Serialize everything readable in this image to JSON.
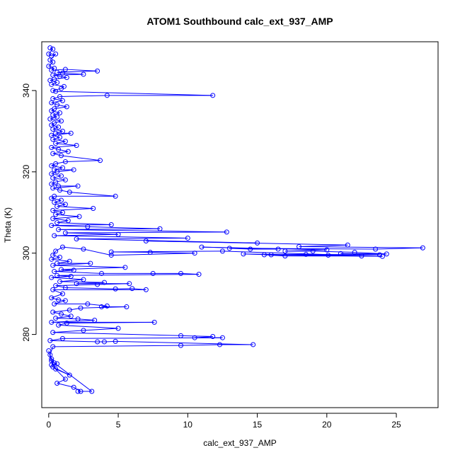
{
  "chart_data": {
    "type": "scatter",
    "title": "ATOM1 Southbound calc_ext_937_AMP",
    "xlabel": "calc_ext_937_AMP",
    "ylabel": "Theta (K)",
    "xlim": [
      -0.5,
      28
    ],
    "ylim": [
      262,
      352
    ],
    "xticks": [
      0,
      5,
      10,
      15,
      20,
      25
    ],
    "yticks": [
      280,
      300,
      320,
      340
    ],
    "grid": false,
    "legend": "none",
    "marker": "open-circle",
    "connect_points": true,
    "color": "#0000ff",
    "series": [
      {
        "points": [
          [
            0.1,
            350.5
          ],
          [
            0.3,
            350.2
          ],
          [
            0.0,
            349.0
          ],
          [
            0.2,
            348.5
          ],
          [
            0.5,
            349.0
          ],
          [
            0.1,
            347.5
          ],
          [
            0.3,
            347.0
          ],
          [
            0.0,
            346.0
          ],
          [
            0.4,
            345.5
          ],
          [
            0.2,
            345.0
          ],
          [
            1.2,
            345.2
          ],
          [
            3.5,
            344.8
          ],
          [
            0.6,
            344.5
          ],
          [
            1.0,
            344.3
          ],
          [
            2.5,
            344.0
          ],
          [
            0.3,
            343.8
          ],
          [
            0.8,
            343.5
          ],
          [
            1.3,
            343.2
          ],
          [
            0.4,
            342.8
          ],
          [
            0.1,
            342.5
          ],
          [
            0.6,
            342.0
          ],
          [
            0.2,
            341.5
          ],
          [
            1.1,
            341.0
          ],
          [
            0.9,
            340.5
          ],
          [
            0.3,
            340.0
          ],
          [
            0.5,
            339.8
          ],
          [
            11.8,
            338.8
          ],
          [
            4.2,
            338.8
          ],
          [
            0.8,
            338.5
          ],
          [
            0.3,
            338.0
          ],
          [
            1.0,
            337.5
          ],
          [
            0.2,
            337.0
          ],
          [
            0.6,
            336.5
          ],
          [
            1.3,
            336.0
          ],
          [
            0.4,
            335.5
          ],
          [
            0.2,
            335.0
          ],
          [
            0.8,
            334.5
          ],
          [
            0.3,
            334.0
          ],
          [
            0.6,
            333.5
          ],
          [
            0.1,
            333.0
          ],
          [
            0.9,
            332.5
          ],
          [
            0.4,
            332.0
          ],
          [
            0.2,
            331.5
          ],
          [
            0.7,
            331.0
          ],
          [
            0.3,
            330.5
          ],
          [
            1.0,
            330.0
          ],
          [
            0.5,
            329.5
          ],
          [
            1.6,
            329.5
          ],
          [
            0.2,
            329.0
          ],
          [
            0.8,
            328.5
          ],
          [
            0.3,
            328.0
          ],
          [
            1.2,
            327.5
          ],
          [
            0.5,
            327.0
          ],
          [
            2.0,
            326.5
          ],
          [
            0.2,
            326.0
          ],
          [
            0.7,
            325.5
          ],
          [
            1.4,
            325.0
          ],
          [
            0.3,
            324.5
          ],
          [
            0.9,
            324.0
          ],
          [
            3.7,
            322.8
          ],
          [
            1.2,
            322.5
          ],
          [
            0.5,
            322.0
          ],
          [
            0.2,
            321.5
          ],
          [
            1.0,
            321.0
          ],
          [
            0.4,
            320.5
          ],
          [
            1.8,
            320.5
          ],
          [
            0.6,
            320.0
          ],
          [
            0.2,
            319.5
          ],
          [
            0.9,
            319.0
          ],
          [
            0.3,
            318.5
          ],
          [
            1.2,
            318.0
          ],
          [
            0.5,
            317.5
          ],
          [
            0.2,
            317.0
          ],
          [
            0.7,
            316.5
          ],
          [
            2.1,
            316.5
          ],
          [
            0.3,
            316.0
          ],
          [
            0.8,
            315.5
          ],
          [
            1.5,
            315.0
          ],
          [
            4.8,
            314.0
          ],
          [
            0.4,
            314.0
          ],
          [
            0.2,
            313.5
          ],
          [
            0.9,
            313.0
          ],
          [
            0.4,
            312.5
          ],
          [
            1.2,
            312.0
          ],
          [
            0.6,
            311.5
          ],
          [
            3.2,
            311.0
          ],
          [
            0.3,
            310.5
          ],
          [
            1.0,
            310.0
          ],
          [
            0.5,
            309.5
          ],
          [
            2.2,
            309.0
          ],
          [
            0.3,
            308.5
          ],
          [
            1.4,
            308.0
          ],
          [
            0.6,
            307.5
          ],
          [
            4.5,
            307.0
          ],
          [
            0.2,
            306.8
          ],
          [
            2.8,
            306.5
          ],
          [
            8.0,
            306.0
          ],
          [
            0.7,
            305.8
          ],
          [
            12.8,
            305.2
          ],
          [
            1.2,
            305.0
          ],
          [
            5.0,
            304.6
          ],
          [
            0.4,
            304.3
          ],
          [
            10.0,
            303.7
          ],
          [
            2.0,
            303.5
          ],
          [
            15.0,
            302.5
          ],
          [
            7.0,
            303.0
          ],
          [
            21.5,
            302.0
          ],
          [
            18.0,
            301.6
          ],
          [
            26.9,
            301.3
          ],
          [
            23.5,
            301.0
          ],
          [
            13.0,
            301.2
          ],
          [
            14.5,
            301.0
          ],
          [
            16.5,
            301.0
          ],
          [
            11.0,
            301.5
          ],
          [
            20.0,
            300.8
          ],
          [
            17.0,
            300.5
          ],
          [
            19.0,
            300.5
          ],
          [
            22.0,
            300.2
          ],
          [
            24.3,
            299.8
          ],
          [
            21.0,
            299.9
          ],
          [
            23.8,
            299.6
          ],
          [
            18.5,
            299.7
          ],
          [
            16.0,
            299.6
          ],
          [
            14.0,
            299.8
          ],
          [
            20.1,
            299.5
          ],
          [
            22.5,
            299.3
          ],
          [
            17.0,
            299.3
          ],
          [
            15.5,
            299.6
          ],
          [
            24.0,
            299.2
          ],
          [
            12.5,
            300.5
          ],
          [
            4.5,
            300.3
          ],
          [
            7.3,
            300.2
          ],
          [
            10.5,
            300.0
          ],
          [
            4.5,
            299.5
          ],
          [
            2.5,
            301.0
          ],
          [
            1.0,
            301.5
          ],
          [
            0.5,
            300.5
          ],
          [
            0.3,
            299.5
          ],
          [
            0.8,
            299.0
          ],
          [
            0.2,
            298.5
          ],
          [
            1.5,
            298.0
          ],
          [
            0.6,
            297.5
          ],
          [
            3.0,
            297.5
          ],
          [
            0.3,
            297.0
          ],
          [
            5.5,
            296.5
          ],
          [
            0.9,
            296.0
          ],
          [
            1.8,
            295.8
          ],
          [
            0.4,
            295.5
          ],
          [
            3.8,
            295.0
          ],
          [
            7.5,
            295.0
          ],
          [
            9.5,
            295.0
          ],
          [
            10.8,
            294.8
          ],
          [
            0.6,
            294.5
          ],
          [
            1.6,
            294.3
          ],
          [
            0.2,
            294.0
          ],
          [
            2.5,
            293.5
          ],
          [
            0.8,
            293.0
          ],
          [
            4.0,
            292.8
          ],
          [
            2.0,
            292.5
          ],
          [
            5.8,
            292.5
          ],
          [
            3.5,
            292.3
          ],
          [
            0.5,
            292.0
          ],
          [
            1.2,
            291.5
          ],
          [
            4.8,
            291.2
          ],
          [
            6.0,
            291.3
          ],
          [
            7.0,
            291.0
          ],
          [
            0.3,
            291.0
          ],
          [
            1.0,
            290.0
          ],
          [
            0.2,
            289.0
          ],
          [
            0.7,
            288.5
          ],
          [
            1.2,
            288.3
          ],
          [
            0.4,
            287.5
          ],
          [
            2.8,
            287.5
          ],
          [
            4.2,
            287.0
          ],
          [
            3.8,
            286.8
          ],
          [
            5.6,
            286.8
          ],
          [
            2.3,
            286.5
          ],
          [
            1.5,
            286.0
          ],
          [
            0.3,
            285.5
          ],
          [
            0.9,
            285.0
          ],
          [
            1.6,
            284.5
          ],
          [
            0.5,
            284.0
          ],
          [
            2.1,
            283.8
          ],
          [
            3.3,
            283.5
          ],
          [
            0.2,
            283.0
          ],
          [
            7.6,
            283.0
          ],
          [
            1.3,
            282.8
          ],
          [
            0.7,
            282.3
          ],
          [
            5.0,
            281.5
          ],
          [
            2.5,
            281.0
          ],
          [
            0.3,
            280.5
          ],
          [
            9.5,
            279.7
          ],
          [
            11.8,
            279.5
          ],
          [
            10.5,
            279.2
          ],
          [
            12.5,
            279.2
          ],
          [
            1.0,
            279.0
          ],
          [
            0.1,
            278.5
          ],
          [
            3.5,
            278.2
          ],
          [
            4.0,
            278.2
          ],
          [
            4.8,
            278.3
          ],
          [
            14.7,
            277.5
          ],
          [
            12.3,
            277.5
          ],
          [
            9.5,
            277.3
          ],
          [
            0.3,
            277.0
          ],
          [
            0.1,
            275.0
          ],
          [
            0.2,
            274.0
          ],
          [
            0.4,
            273.0
          ],
          [
            0.6,
            272.8
          ],
          [
            0.2,
            272.5
          ],
          [
            1.2,
            269.0
          ],
          [
            0.6,
            268.0
          ],
          [
            1.8,
            267.0
          ],
          [
            2.3,
            266.0
          ],
          [
            2.1,
            266.0
          ],
          [
            3.1,
            266.0
          ],
          [
            0.2,
            273.5
          ],
          [
            0.5,
            271.5
          ],
          [
            1.5,
            270.0
          ],
          [
            0.3,
            272.0
          ],
          [
            0.0,
            276.0
          ]
        ]
      }
    ]
  }
}
